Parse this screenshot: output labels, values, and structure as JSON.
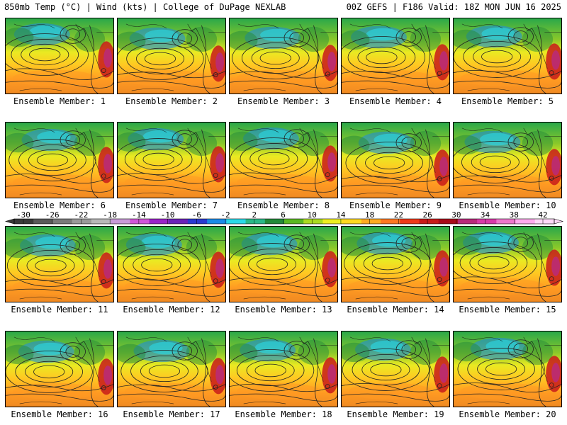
{
  "header": {
    "left": "850mb Temp (°C) | Wind (kts) | College of DuPage NEXLAB",
    "right": "00Z GEFS | F186 Valid: 18Z MON JUN 16 2025"
  },
  "colorbar": {
    "ticks": [
      "-30",
      "-26",
      "-22",
      "-18",
      "-14",
      "-10",
      "-6",
      "-2",
      "2",
      "6",
      "10",
      "14",
      "18",
      "22",
      "26",
      "30",
      "34",
      "38",
      "42"
    ],
    "colors": [
      "#3a3a3a",
      "#5a5a5a",
      "#7a7a7a",
      "#9a9a9a",
      "#b8b8b8",
      "#c89ad8",
      "#d055d8",
      "#9a22c8",
      "#6a22b8",
      "#2a3ad0",
      "#1a8ae8",
      "#2ad8e8",
      "#2ab888",
      "#228a3a",
      "#5ab822",
      "#aada22",
      "#eeee22",
      "#ffd822",
      "#ffaa22",
      "#ff7722",
      "#ee3a1a",
      "#c81a1a",
      "#a80a1a",
      "#b82a7a",
      "#d83aa8",
      "#ee77cc",
      "#ffaaee",
      "#ffd8f8"
    ]
  },
  "panels": [
    {
      "label": "Ensemble Member: 1"
    },
    {
      "label": "Ensemble Member: 2"
    },
    {
      "label": "Ensemble Member: 3"
    },
    {
      "label": "Ensemble Member: 4"
    },
    {
      "label": "Ensemble Member: 5"
    },
    {
      "label": "Ensemble Member: 6"
    },
    {
      "label": "Ensemble Member: 7"
    },
    {
      "label": "Ensemble Member: 8"
    },
    {
      "label": "Ensemble Member: 9"
    },
    {
      "label": "Ensemble Member: 10"
    },
    {
      "label": "Ensemble Member: 11"
    },
    {
      "label": "Ensemble Member: 12"
    },
    {
      "label": "Ensemble Member: 13"
    },
    {
      "label": "Ensemble Member: 14"
    },
    {
      "label": "Ensemble Member: 15"
    },
    {
      "label": "Ensemble Member: 16"
    },
    {
      "label": "Ensemble Member: 17"
    },
    {
      "label": "Ensemble Member: 18"
    },
    {
      "label": "Ensemble Member: 19"
    },
    {
      "label": "Ensemble Member: 20"
    }
  ]
}
